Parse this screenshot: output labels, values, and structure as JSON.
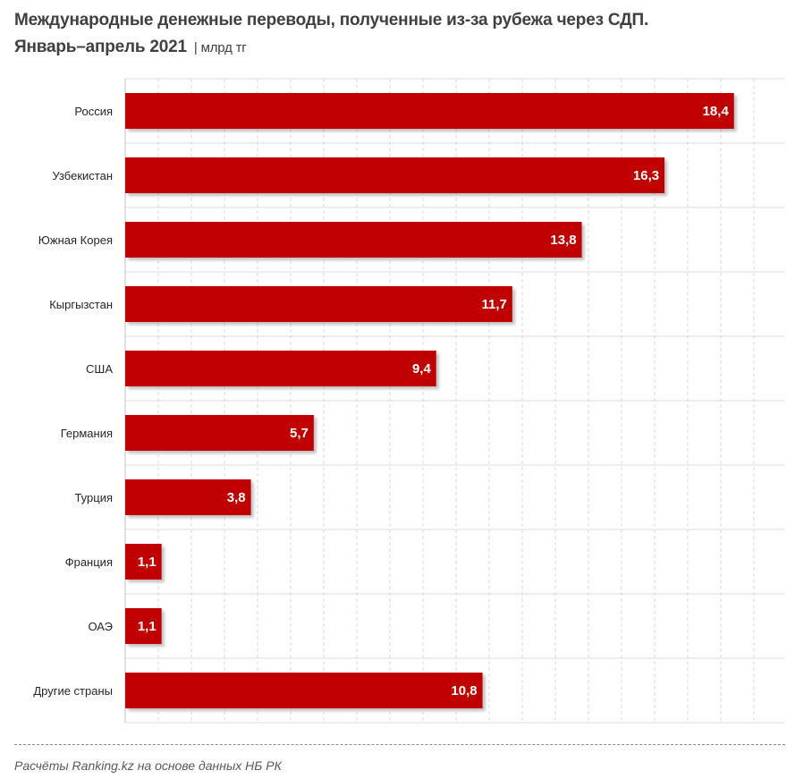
{
  "header": {
    "title_line1": "Международные денежные переводы, полученные из-за рубежа через СДП.",
    "title_line2": "Январь–апрель 2021",
    "separator": "|",
    "unit": "млрд тг"
  },
  "footer": {
    "source": "Расчёты Ranking.kz на основе данных НБ РК"
  },
  "colors": {
    "bar": "#C00000",
    "bar_shadow": "#bfbfbf",
    "grid": "#d9d9d9",
    "text": "#404040"
  },
  "chart_data": {
    "type": "bar",
    "orientation": "horizontal",
    "title": "Международные денежные переводы, полученные из-за рубежа через СДП. Январь–апрель 2021",
    "unit": "млрд тг",
    "categories": [
      "Россия",
      "Узбекистан",
      "Южная Корея",
      "Кыргызстан",
      "США",
      "Германия",
      "Турция",
      "Франция",
      "ОАЭ",
      "Другие страны"
    ],
    "values": [
      18.4,
      16.3,
      13.8,
      11.7,
      9.4,
      5.7,
      3.8,
      1.1,
      1.1,
      10.8
    ],
    "value_labels": [
      "18,4",
      "16,3",
      "13,8",
      "11,7",
      "9,4",
      "5,7",
      "3,8",
      "1,1",
      "1,1",
      "10,8"
    ],
    "xlim": [
      0,
      20
    ],
    "grid": true,
    "legend": "none"
  }
}
